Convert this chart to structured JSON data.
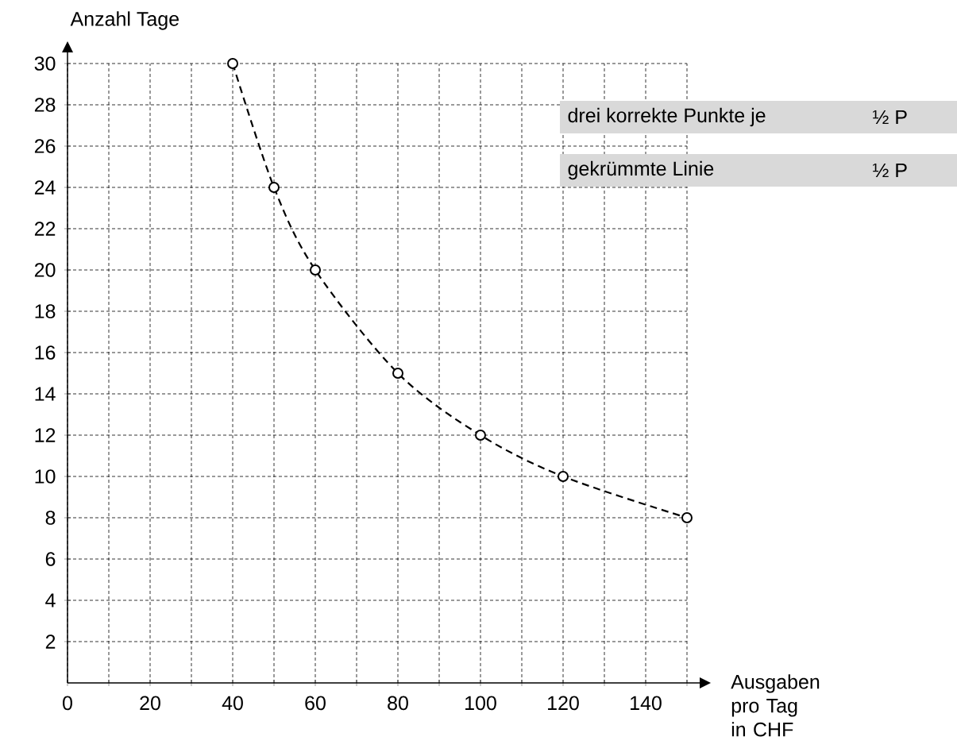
{
  "chart_data": {
    "type": "line",
    "xlabel": "Ausgaben pro Tag in CHF",
    "ylabel": "Anzahl Tage",
    "x": [
      40,
      50,
      60,
      80,
      100,
      120,
      150
    ],
    "series": [
      {
        "color": "#000000",
        "values": [
          30,
          24,
          20,
          15,
          12,
          10,
          8
        ]
      }
    ],
    "marker": "circle",
    "line_style": "dashed",
    "grid": true,
    "xlim": [
      0,
      150
    ],
    "ylim": [
      0,
      30
    ],
    "xticks": [
      0,
      {
        "value": 10,
        "label": null
      },
      20,
      {
        "value": 30,
        "label": null
      },
      40,
      {
        "value": 50,
        "label": null
      },
      60,
      {
        "value": 70,
        "label": null
      },
      80,
      {
        "value": 90,
        "label": null
      },
      100,
      {
        "value": 110,
        "label": null
      },
      120,
      {
        "value": 130,
        "label": null
      },
      140,
      {
        "value": 150,
        "label": null
      }
    ],
    "yticks": [
      2,
      4,
      6,
      8,
      10,
      12,
      14,
      16,
      18,
      20,
      22,
      24,
      26,
      28,
      30
    ],
    "annotations": [
      "drei korrekte Punkte je",
      "½ P",
      "gekrümmte Linie",
      "½ P"
    ]
  }
}
